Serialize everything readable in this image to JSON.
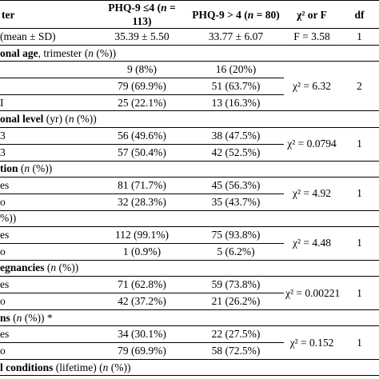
{
  "table": {
    "header": {
      "label": "ter",
      "group1": {
        "text": "PHQ-9 ≤4 (",
        "italic": "n",
        "end": " = 113)"
      },
      "group2": {
        "text": "PHQ-9 > 4 (",
        "italic": "n",
        "end": " = 80)"
      },
      "stat": "χ² or F",
      "df": "df"
    },
    "groups": [
      {
        "rows": [
          {
            "label": "(mean ± SD)",
            "g1": "35.39 ± 5.50",
            "g2": "33.77 ± 6.07"
          }
        ],
        "stat": "F = 3.58",
        "df": "1"
      },
      {
        "title": {
          "bold": "onal age",
          "text": ", trimester (",
          "italic": "n",
          "end": " (%))"
        },
        "rows": [
          {
            "g1": "9 (8%)",
            "g2": "16 (20%)"
          },
          {
            "g1": "79 (69.9%)",
            "g2": "51 (63.7%)"
          },
          {
            "label": "I",
            "g1": "25 (22.1%)",
            "g2": "13 (16.3%)"
          }
        ],
        "stat": "χ² = 6.32",
        "df": "2"
      },
      {
        "title": {
          "bold": "onal level",
          "text": " (yr) (",
          "italic": "n",
          "end": " (%))"
        },
        "rows": [
          {
            "label": "3",
            "g1": "56 (49.6%)",
            "g2": "38 (47.5%)"
          },
          {
            "label": "3",
            "g1": "57 (50.4%)",
            "g2": "42 (52.5%)"
          }
        ],
        "stat": "χ² = 0.0794",
        "df": "1"
      },
      {
        "title": {
          "bold": "tion",
          "text": " (",
          "italic": "n",
          "end": " (%))"
        },
        "rows": [
          {
            "label": "es",
            "g1": "81 (71.7%)",
            "g2": "45 (56.3%)"
          },
          {
            "label": "o",
            "g1": "32 (28.3%)",
            "g2": "35 (43.7%)"
          }
        ],
        "stat": "χ² = 4.92",
        "df": "1"
      },
      {
        "title": {
          "end": "%))"
        },
        "rows": [
          {
            "label": "es",
            "g1": "112 (99.1%)",
            "g2": "75 (93.8%)"
          },
          {
            "label": "o",
            "g1": "1 (0.9%)",
            "g2": "5 (6.2%)"
          }
        ],
        "stat": "χ² = 4.48",
        "df": "1"
      },
      {
        "title": {
          "bold": "egnancies",
          "text": " (",
          "italic": "n",
          "end": " (%))"
        },
        "rows": [
          {
            "label": "es",
            "g1": "71 (62.8%)",
            "g2": "59 (73.8%)"
          },
          {
            "label": "o",
            "g1": "42 (37.2%)",
            "g2": "21 (26.2%)"
          }
        ],
        "stat": "χ² = 0.00221",
        "df": "1"
      },
      {
        "title": {
          "bold": "ns",
          "text": " (",
          "italic": "n",
          "end": " (%)) *"
        },
        "rows": [
          {
            "label": "es",
            "g1": "34 (30.1%)",
            "g2": "22 (27.5%)"
          },
          {
            "label": "o",
            "g1": "79 (69.9%)",
            "g2": "58 (72.5%)"
          }
        ],
        "stat": "χ² = 0.152",
        "df": "1"
      },
      {
        "title": {
          "bold": "l conditions",
          "text": " (lifetime) (",
          "italic": "n",
          "end": " (%))"
        }
      }
    ]
  }
}
